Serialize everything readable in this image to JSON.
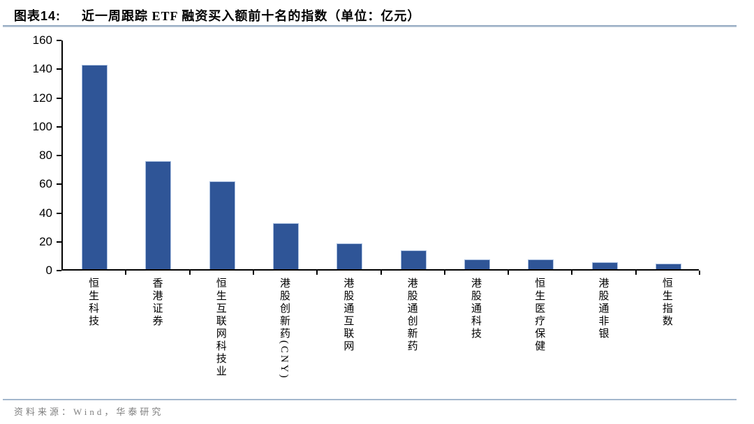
{
  "header": {
    "label": "图表14:",
    "title": "近一周跟踪 ETF 融资买入额前十名的指数（单位：亿元）"
  },
  "chart_data": {
    "type": "bar",
    "title": "近一周跟踪 ETF 融资买入额前十名的指数",
    "unit": "亿元",
    "categories": [
      "恒生科技",
      "香港证券",
      "恒生互联网科技业",
      "港股创新药(CNY)",
      "港股通互联网",
      "港股通创新药",
      "港股通科技",
      "恒生医疗保健",
      "港股通非银",
      "恒生指数"
    ],
    "values": [
      142,
      75,
      61,
      32,
      18,
      13,
      7,
      7,
      5,
      4
    ],
    "ylim": [
      0,
      160
    ],
    "yticks": [
      0,
      20,
      40,
      60,
      80,
      100,
      120,
      140,
      160
    ],
    "xlabel": "",
    "ylabel": "",
    "grid": false,
    "legend": "none",
    "bar_color": "#2F5597"
  },
  "footer": {
    "source": "资料来源：Wind，华泰研究"
  }
}
